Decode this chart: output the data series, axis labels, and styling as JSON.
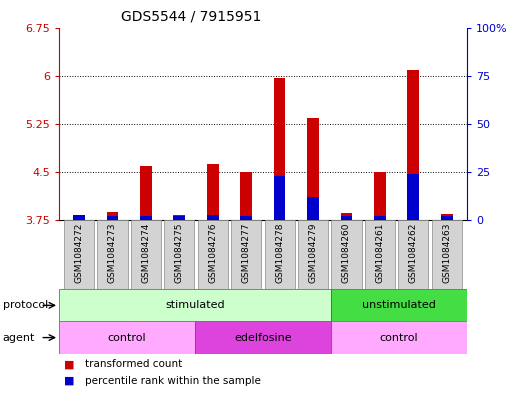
{
  "title": "GDS5544 / 7915951",
  "samples": [
    "GSM1084272",
    "GSM1084273",
    "GSM1084274",
    "GSM1084275",
    "GSM1084276",
    "GSM1084277",
    "GSM1084278",
    "GSM1084279",
    "GSM1084260",
    "GSM1084261",
    "GSM1084262",
    "GSM1084263"
  ],
  "red_values": [
    3.83,
    3.88,
    4.6,
    3.84,
    4.63,
    4.5,
    5.97,
    5.35,
    3.87,
    4.5,
    6.1,
    3.85
  ],
  "blue_values": [
    3.83,
    3.82,
    3.82,
    3.82,
    3.84,
    3.82,
    4.45,
    4.12,
    3.82,
    3.82,
    4.47,
    3.82
  ],
  "baseline": 3.75,
  "ylim_left": [
    3.75,
    6.75
  ],
  "ylim_right": [
    0,
    100
  ],
  "yticks_left": [
    3.75,
    4.5,
    5.25,
    6.0,
    6.75
  ],
  "yticks_left_labels": [
    "3.75",
    "4.5",
    "5.25",
    "6",
    "6.75"
  ],
  "yticks_right": [
    0,
    25,
    50,
    75,
    100
  ],
  "yticks_right_labels": [
    "0",
    "25",
    "50",
    "75",
    "100%"
  ],
  "protocol_groups": [
    {
      "label": "stimulated",
      "start": 0,
      "end": 8,
      "color": "#ccffcc"
    },
    {
      "label": "unstimulated",
      "start": 8,
      "end": 12,
      "color": "#44dd44"
    }
  ],
  "agent_groups": [
    {
      "label": "control",
      "start": 0,
      "end": 4,
      "color": "#ffaaff"
    },
    {
      "label": "edelfosine",
      "start": 4,
      "end": 8,
      "color": "#dd44dd"
    },
    {
      "label": "control",
      "start": 8,
      "end": 12,
      "color": "#ffaaff"
    }
  ],
  "red_color": "#cc0000",
  "blue_color": "#0000cc",
  "bar_width": 0.35,
  "bg_color": "#ffffff",
  "plot_bg": "#ffffff",
  "left_label_color": "#cc0000",
  "right_label_color": "#0000cc",
  "tick_fontsize": 8,
  "title_fontsize": 10,
  "sample_fontsize": 6.5,
  "row_fontsize": 8,
  "legend_fontsize": 7.5
}
